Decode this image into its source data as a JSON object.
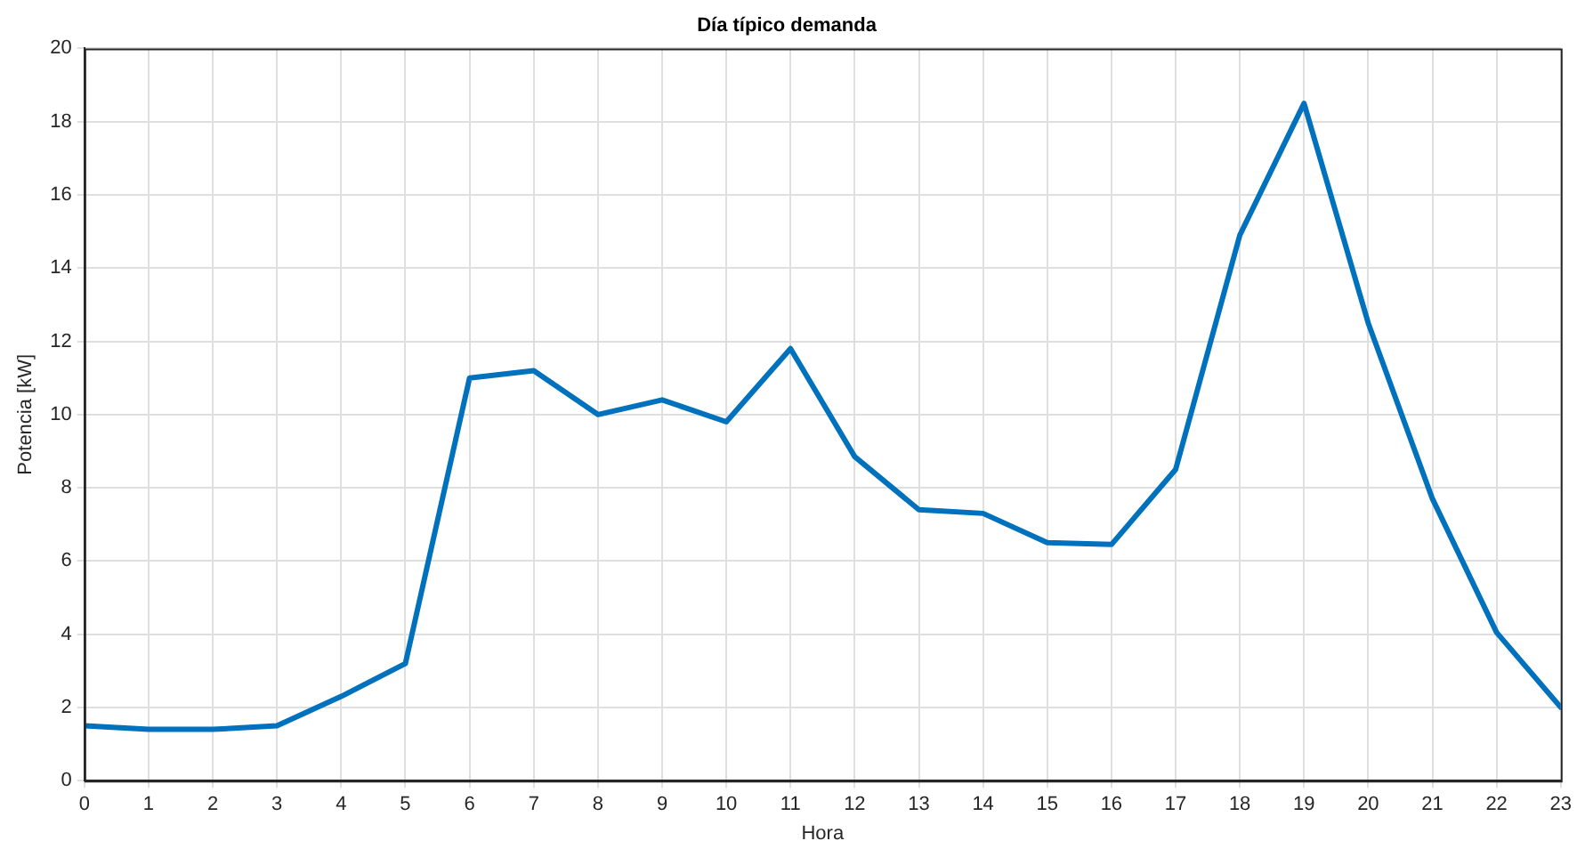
{
  "chart_data": {
    "type": "line",
    "title": "Día típico demanda",
    "xlabel": "Hora",
    "ylabel": "Potencia [kW]",
    "x": [
      0,
      1,
      2,
      3,
      4,
      5,
      6,
      7,
      8,
      9,
      10,
      11,
      12,
      13,
      14,
      15,
      16,
      17,
      18,
      19,
      20,
      21,
      22,
      23
    ],
    "series": [
      {
        "color": "#0072bd",
        "values": [
          1.5,
          1.4,
          1.4,
          1.5,
          2.3,
          3.2,
          11.0,
          11.2,
          10.0,
          10.4,
          9.8,
          11.8,
          8.85,
          7.4,
          7.3,
          6.5,
          6.45,
          8.5,
          14.9,
          18.5,
          12.5,
          7.7,
          4.05,
          2.0
        ]
      }
    ],
    "xlim": [
      0,
      23
    ],
    "xticks": [
      0,
      1,
      2,
      3,
      4,
      5,
      6,
      7,
      8,
      9,
      10,
      11,
      12,
      13,
      14,
      15,
      16,
      17,
      18,
      19,
      20,
      21,
      22,
      23
    ],
    "ylim": [
      0,
      20
    ],
    "yticks": [
      0,
      2,
      4,
      6,
      8,
      10,
      12,
      14,
      16,
      18,
      20
    ],
    "grid": true,
    "legend": false,
    "marker": "none",
    "line_style": "solid"
  }
}
